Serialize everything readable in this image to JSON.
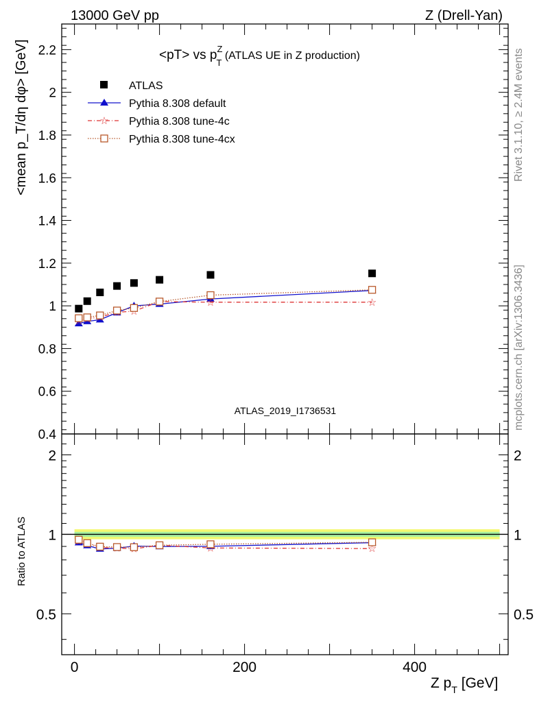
{
  "header": {
    "left": "13000 GeV pp",
    "right": "Z (Drell-Yan)"
  },
  "side_text": {
    "top": "Rivet 3.1.10, ≥ 2.4M events",
    "bottom": "mcplots.cern.ch [arXiv:1306.3436]"
  },
  "analysis_id": "ATLAS_2019_I1736531",
  "legend": [
    "ATLAS",
    "Pythia 8.308 default",
    "Pythia 8.308 tune-4c",
    "Pythia 8.308 tune-4cx"
  ],
  "colors": {
    "data": "#000000",
    "default": "#1010cc",
    "tune4c": "#dd3333",
    "tune4cx": "#b8582a",
    "band_inner": "#a8f0a0",
    "band_outer": "#f4f870"
  },
  "chart_data": [
    {
      "type": "line",
      "title": "<pT> vs p_T^Z (ATLAS UE in Z production)",
      "title_parts": {
        "main": "<pT> vs p",
        "sup": "Z",
        "sub": "T",
        "tail": " (ATLAS UE in Z production)"
      },
      "ylabel": "<mean p_T/dη dφ> [GeV]",
      "xlim": [
        -15,
        510
      ],
      "ylim": [
        0.4,
        2.32
      ],
      "yticks": [
        0.4,
        0.6,
        0.8,
        1,
        1.2,
        1.4,
        1.6,
        1.8,
        2,
        2.2
      ],
      "ytick_labels": [
        "0.4",
        "0.6",
        "0.8",
        "1",
        "1.2",
        "1.4",
        "1.6",
        "1.8",
        "2",
        "2.2"
      ],
      "x": [
        5,
        15,
        30,
        50,
        70,
        100,
        160,
        350
      ],
      "series": [
        {
          "name": "ATLAS",
          "values": [
            0.987,
            1.022,
            1.063,
            1.093,
            1.107,
            1.122,
            1.145,
            1.152
          ]
        },
        {
          "name": "Pythia 8.308 default",
          "values": [
            0.917,
            0.927,
            0.935,
            0.968,
            1.0,
            1.008,
            1.032,
            1.072
          ]
        },
        {
          "name": "Pythia 8.308 tune-4c",
          "values": [
            0.93,
            0.94,
            0.947,
            0.97,
            0.975,
            1.02,
            1.017,
            1.017
          ]
        },
        {
          "name": "Pythia 8.308 tune-4cx",
          "values": [
            0.942,
            0.946,
            0.955,
            0.978,
            0.99,
            1.02,
            1.05,
            1.075
          ]
        }
      ]
    },
    {
      "type": "line",
      "ylabel": "Ratio to ATLAS",
      "xlabel": "Z p_T [GeV]",
      "xlabel_parts": {
        "main": "Z p",
        "sub": "T",
        "tail": " [GeV]"
      },
      "xlim": [
        -15,
        510
      ],
      "ylim": [
        0.35,
        2.4
      ],
      "log_y": true,
      "yticks": [
        0.5,
        1,
        2
      ],
      "ytick_labels": [
        "0.5",
        "1",
        "2"
      ],
      "xticks": [
        0,
        200,
        400
      ],
      "xtick_labels": [
        "0",
        "200",
        "400"
      ],
      "x": [
        5,
        15,
        30,
        50,
        70,
        100,
        160,
        350
      ],
      "series": [
        {
          "name": "Pythia 8.308 default",
          "values": [
            0.93,
            0.907,
            0.88,
            0.886,
            0.903,
            0.899,
            0.901,
            0.93
          ]
        },
        {
          "name": "Pythia 8.308 tune-4c",
          "values": [
            0.942,
            0.92,
            0.891,
            0.887,
            0.881,
            0.909,
            0.888,
            0.883
          ]
        },
        {
          "name": "Pythia 8.308 tune-4cx",
          "values": [
            0.954,
            0.926,
            0.898,
            0.895,
            0.894,
            0.909,
            0.917,
            0.933
          ]
        }
      ]
    }
  ]
}
